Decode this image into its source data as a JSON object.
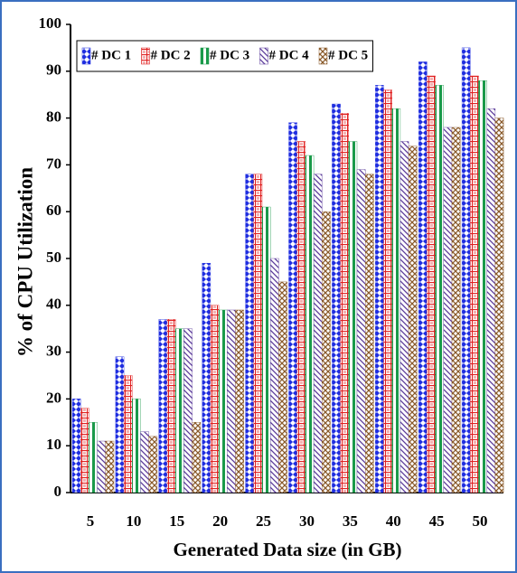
{
  "chart_data": {
    "type": "bar",
    "x_label": "Generated Data size (in GB)",
    "y_label": "% of CPU Utilization",
    "categories": [
      "5",
      "10",
      "15",
      "20",
      "25",
      "30",
      "35",
      "40",
      "45",
      "50"
    ],
    "series": [
      {
        "name": "# DC 1",
        "color": "#1f2ee0",
        "values": [
          20,
          29,
          37,
          49,
          68,
          79,
          83,
          87,
          92,
          95
        ]
      },
      {
        "name": "# DC 2",
        "color": "#e02020",
        "values": [
          18,
          25,
          37,
          40,
          68,
          75,
          81,
          86,
          89,
          89
        ]
      },
      {
        "name": "# DC 3",
        "color": "#1a9a4a",
        "values": [
          15,
          20,
          35,
          39,
          61,
          72,
          75,
          82,
          87,
          88
        ]
      },
      {
        "name": "# DC 4",
        "color": "#5a3a9a",
        "values": [
          11,
          13,
          35,
          39,
          50,
          68,
          69,
          75,
          78,
          82
        ]
      },
      {
        "name": "# DC 5",
        "color": "#8a5a2a",
        "values": [
          11,
          12,
          15,
          39,
          45,
          60,
          68,
          74,
          78,
          80
        ]
      }
    ],
    "ylim": [
      0,
      100
    ],
    "yticks": [
      0,
      10,
      20,
      30,
      40,
      50,
      60,
      70,
      80,
      90,
      100
    ],
    "grid": false,
    "legend": "top-left"
  }
}
